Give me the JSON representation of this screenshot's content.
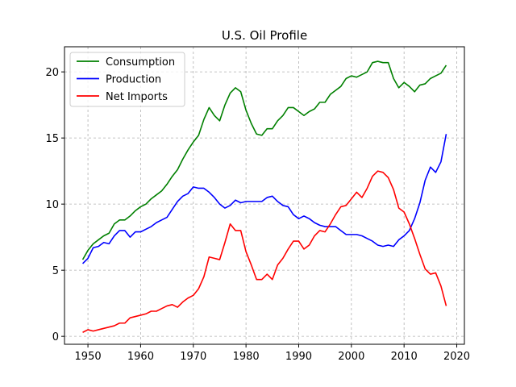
{
  "chart_data": {
    "type": "line",
    "title": "U.S. Oil Profile",
    "xlabel": "",
    "ylabel": "",
    "xlim": [
      1945.55,
      2021.45
    ],
    "ylim": [
      -0.6,
      21.9
    ],
    "xticks": [
      1950,
      1960,
      1970,
      1980,
      1990,
      2000,
      2010,
      2020
    ],
    "yticks": [
      0,
      5,
      10,
      15,
      20
    ],
    "grid": true,
    "legend": "top-left",
    "x": [
      1949,
      1950,
      1951,
      1952,
      1953,
      1954,
      1955,
      1956,
      1957,
      1958,
      1959,
      1960,
      1961,
      1962,
      1963,
      1964,
      1965,
      1966,
      1967,
      1968,
      1969,
      1970,
      1971,
      1972,
      1973,
      1974,
      1975,
      1976,
      1977,
      1978,
      1979,
      1980,
      1981,
      1982,
      1983,
      1984,
      1985,
      1986,
      1987,
      1988,
      1989,
      1990,
      1991,
      1992,
      1993,
      1994,
      1995,
      1996,
      1997,
      1998,
      1999,
      2000,
      2001,
      2002,
      2003,
      2004,
      2005,
      2006,
      2007,
      2008,
      2009,
      2010,
      2011,
      2012,
      2013,
      2014,
      2015,
      2016,
      2017,
      2018
    ],
    "series": [
      {
        "name": "Consumption",
        "color": "#008000",
        "values": [
          5.8,
          6.5,
          7.0,
          7.3,
          7.6,
          7.8,
          8.5,
          8.8,
          8.8,
          9.1,
          9.5,
          9.8,
          10.0,
          10.4,
          10.7,
          11.0,
          11.5,
          12.1,
          12.6,
          13.4,
          14.1,
          14.7,
          15.2,
          16.4,
          17.3,
          16.7,
          16.3,
          17.5,
          18.4,
          18.8,
          18.5,
          17.1,
          16.1,
          15.3,
          15.2,
          15.7,
          15.7,
          16.3,
          16.7,
          17.3,
          17.3,
          17.0,
          16.7,
          17.0,
          17.2,
          17.7,
          17.7,
          18.3,
          18.6,
          18.9,
          19.5,
          19.7,
          19.6,
          19.8,
          20.0,
          20.7,
          20.8,
          20.7,
          20.7,
          19.5,
          18.8,
          19.2,
          18.9,
          18.5,
          19.0,
          19.1,
          19.5,
          19.7,
          19.9,
          20.5
        ]
      },
      {
        "name": "Production",
        "color": "#0000ff",
        "values": [
          5.5,
          5.9,
          6.7,
          6.8,
          7.1,
          7.0,
          7.6,
          8.0,
          8.0,
          7.5,
          7.9,
          7.9,
          8.1,
          8.3,
          8.6,
          8.8,
          9.0,
          9.6,
          10.2,
          10.6,
          10.8,
          11.3,
          11.2,
          11.2,
          10.9,
          10.5,
          10.0,
          9.7,
          9.9,
          10.3,
          10.1,
          10.2,
          10.2,
          10.2,
          10.2,
          10.5,
          10.6,
          10.2,
          9.9,
          9.8,
          9.2,
          8.9,
          9.1,
          8.9,
          8.6,
          8.4,
          8.3,
          8.3,
          8.3,
          8.0,
          7.7,
          7.7,
          7.7,
          7.6,
          7.4,
          7.2,
          6.9,
          6.8,
          6.9,
          6.8,
          7.3,
          7.6,
          8.0,
          8.9,
          10.1,
          11.8,
          12.8,
          12.4,
          13.2,
          15.3
        ]
      },
      {
        "name": "Net Imports",
        "color": "#ff0000",
        "values": [
          0.3,
          0.5,
          0.4,
          0.5,
          0.6,
          0.7,
          0.8,
          1.0,
          1.0,
          1.4,
          1.5,
          1.6,
          1.7,
          1.9,
          1.9,
          2.1,
          2.3,
          2.4,
          2.2,
          2.6,
          2.9,
          3.1,
          3.6,
          4.5,
          6.0,
          5.9,
          5.8,
          7.1,
          8.5,
          8.0,
          8.0,
          6.4,
          5.4,
          4.3,
          4.3,
          4.7,
          4.3,
          5.4,
          5.9,
          6.6,
          7.2,
          7.2,
          6.6,
          6.9,
          7.6,
          8.0,
          7.9,
          8.5,
          9.2,
          9.8,
          9.9,
          10.4,
          10.9,
          10.5,
          11.2,
          12.1,
          12.5,
          12.4,
          12.0,
          11.1,
          9.7,
          9.4,
          8.5,
          7.4,
          6.2,
          5.1,
          4.7,
          4.8,
          3.8,
          2.3
        ]
      }
    ]
  }
}
